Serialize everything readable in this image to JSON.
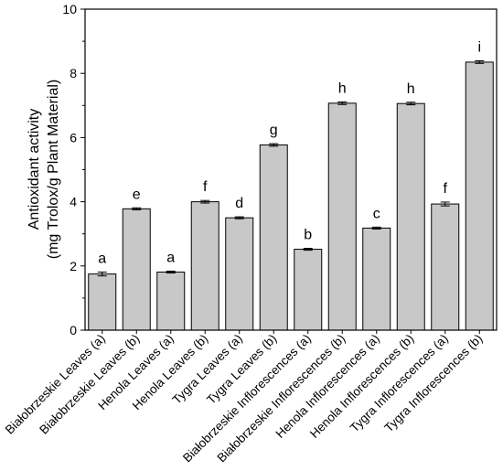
{
  "chart_data": {
    "type": "bar",
    "categories": [
      "Białobrzeskie Leaves (a)",
      "Białobrzeskie Leaves (b)",
      "Henola Leaves (a)",
      "Henola Leaves (b)",
      "Tygra Leaves (a)",
      "Tygra Leaves (b)",
      "Białobrzeskie Inflorescences (a)",
      "Białobrzeskie Inflorescences (b)",
      "Henola Inflorescences (a)",
      "Henola Inflorescences (b)",
      "Tygra Inflorescences (a)",
      "Tygra Inflorescences (b)"
    ],
    "values": [
      1.75,
      3.78,
      1.81,
      4.0,
      3.5,
      5.77,
      2.52,
      7.07,
      3.18,
      7.06,
      3.93,
      8.35
    ],
    "errors": [
      0.06,
      0.03,
      0.03,
      0.04,
      0.03,
      0.04,
      0.03,
      0.04,
      0.03,
      0.04,
      0.06,
      0.04
    ],
    "significance_letters": [
      "a",
      "e",
      "a",
      "f",
      "d",
      "g",
      "b",
      "h",
      "c",
      "h",
      "f",
      "i"
    ],
    "ylabel_line1": "Antioxidant activity",
    "ylabel_line2": "(mg Trolox/g Plant Material)",
    "xlabel": "",
    "ylim": [
      0,
      10
    ],
    "yticks": [
      0,
      2,
      4,
      6,
      8,
      10
    ],
    "bar_color": "#c8c8c8",
    "bar_edge_color": "#000000",
    "grid": false
  }
}
